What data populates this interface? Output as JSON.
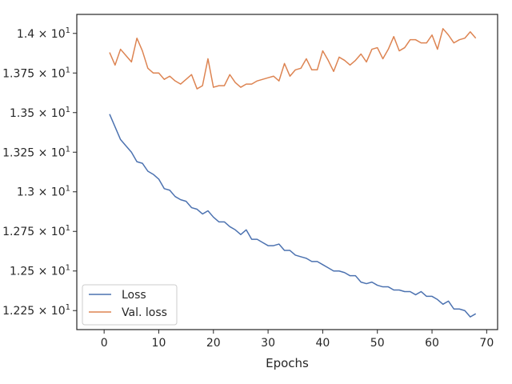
{
  "chart_data": {
    "type": "line",
    "title": "",
    "xlabel": "Epochs",
    "ylabel": "",
    "xlim": [
      -5,
      72
    ],
    "ylim": [
      12.13,
      14.12
    ],
    "x_ticks": [
      0,
      10,
      20,
      30,
      40,
      50,
      60,
      70
    ],
    "x_tick_labels": [
      "0",
      "10",
      "20",
      "30",
      "40",
      "50",
      "60",
      "70"
    ],
    "y_ticks": [
      12.25,
      12.5,
      12.75,
      13.0,
      13.25,
      13.5,
      13.75,
      14.0
    ],
    "y_tick_labels": [
      {
        "mantissa": "1.225",
        "base": "10",
        "exp": "1"
      },
      {
        "mantissa": "1.25",
        "base": "10",
        "exp": "1"
      },
      {
        "mantissa": "1.275",
        "base": "10",
        "exp": "1"
      },
      {
        "mantissa": "1.3",
        "base": "10",
        "exp": "1"
      },
      {
        "mantissa": "1.325",
        "base": "10",
        "exp": "1"
      },
      {
        "mantissa": "1.35",
        "base": "10",
        "exp": "1"
      },
      {
        "mantissa": "1.375",
        "base": "10",
        "exp": "1"
      },
      {
        "mantissa": "1.4",
        "base": "10",
        "exp": "1"
      }
    ],
    "grid": false,
    "legend_position": "lower-left",
    "x": [
      1,
      2,
      3,
      4,
      5,
      6,
      7,
      8,
      9,
      10,
      11,
      12,
      13,
      14,
      15,
      16,
      17,
      18,
      19,
      20,
      21,
      22,
      23,
      24,
      25,
      26,
      27,
      28,
      29,
      30,
      31,
      32,
      33,
      34,
      35,
      36,
      37,
      38,
      39,
      40,
      41,
      42,
      43,
      44,
      45,
      46,
      47,
      48,
      49,
      50,
      51,
      52,
      53,
      54,
      55,
      56,
      57,
      58,
      59,
      60,
      61,
      62,
      63,
      64,
      65,
      66,
      67,
      68
    ],
    "series": [
      {
        "name": "Loss",
        "color": "#4c72b0",
        "values": [
          13.49,
          13.41,
          13.33,
          13.29,
          13.25,
          13.19,
          13.18,
          13.13,
          13.11,
          13.08,
          13.02,
          13.01,
          12.97,
          12.95,
          12.94,
          12.9,
          12.89,
          12.86,
          12.88,
          12.84,
          12.81,
          12.81,
          12.78,
          12.76,
          12.73,
          12.76,
          12.7,
          12.7,
          12.68,
          12.66,
          12.66,
          12.67,
          12.63,
          12.63,
          12.6,
          12.59,
          12.58,
          12.56,
          12.56,
          12.54,
          12.52,
          12.5,
          12.5,
          12.49,
          12.47,
          12.47,
          12.43,
          12.42,
          12.43,
          12.41,
          12.4,
          12.4,
          12.38,
          12.38,
          12.37,
          12.37,
          12.35,
          12.37,
          12.34,
          12.34,
          12.32,
          12.29,
          12.31,
          12.26,
          12.26,
          12.25,
          12.21,
          12.23
        ]
      },
      {
        "name": "Val. loss",
        "color": "#dd8452",
        "values": [
          13.88,
          13.8,
          13.9,
          13.86,
          13.82,
          13.97,
          13.89,
          13.78,
          13.75,
          13.75,
          13.71,
          13.73,
          13.7,
          13.68,
          13.71,
          13.74,
          13.65,
          13.67,
          13.84,
          13.66,
          13.67,
          13.67,
          13.74,
          13.69,
          13.66,
          13.68,
          13.68,
          13.7,
          13.71,
          13.72,
          13.73,
          13.7,
          13.81,
          13.73,
          13.77,
          13.78,
          13.84,
          13.77,
          13.77,
          13.89,
          13.83,
          13.76,
          13.85,
          13.83,
          13.8,
          13.83,
          13.87,
          13.82,
          13.9,
          13.91,
          13.84,
          13.9,
          13.98,
          13.89,
          13.91,
          13.96,
          13.96,
          13.94,
          13.94,
          13.99,
          13.9,
          14.03,
          13.99,
          13.94,
          13.96,
          13.97,
          14.01,
          13.97
        ]
      }
    ]
  }
}
